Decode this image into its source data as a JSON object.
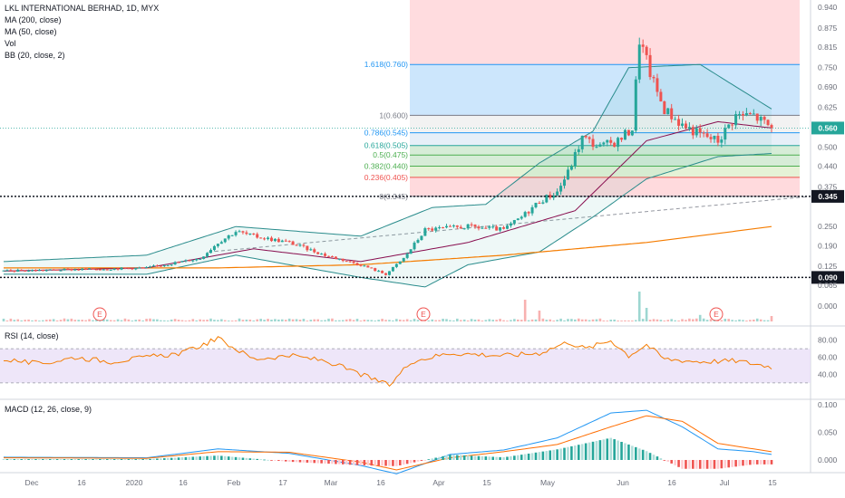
{
  "header": {
    "title": "LKL INTERNATIONAL BERHAD, 1D, MYX",
    "indicators": [
      "MA (200, close)",
      "MA (50, close)",
      "Vol",
      "BB (20, close, 2)"
    ]
  },
  "colors": {
    "up": "#26a69a",
    "down": "#ef5350",
    "ma200": "#f57c00",
    "ma50": "#880e4f",
    "bb": "#2a8c8c",
    "rsi": "#f57c00",
    "rsi_band": "#e7dcf7",
    "macd": "#2196f3",
    "signal": "#ff6d00",
    "price_tag": "#26a69a"
  },
  "price_axis": {
    "ticks": [
      "0.940",
      "0.875",
      "0.815",
      "0.750",
      "0.690",
      "0.625",
      "0.560",
      "0.500",
      "0.440",
      "0.375",
      "0.345",
      "0.250",
      "0.190",
      "0.125",
      "0.090",
      "0.065",
      "0.000"
    ],
    "last_price": "0.560",
    "level_high": "0.345",
    "level_low": "0.090"
  },
  "fib_labels": [
    {
      "text": "1.618(0.760)",
      "color": "#2196f3"
    },
    {
      "text": "1(0.600)",
      "color": "#787b86"
    },
    {
      "text": "0.786(0.545)",
      "color": "#2196f3"
    },
    {
      "text": "0.618(0.505)",
      "color": "#26a69a"
    },
    {
      "text": "0.5(0.475)",
      "color": "#4caf50"
    },
    {
      "text": "0.382(0.440)",
      "color": "#4caf50"
    },
    {
      "text": "0.236(0.405)",
      "color": "#ef5350"
    },
    {
      "text": "0(0.345)",
      "color": "#787b86"
    }
  ],
  "events": [
    "E",
    "E",
    "E"
  ],
  "rsi_panel": {
    "label": "RSI (14, close)",
    "ticks": [
      "80.00",
      "60.00",
      "40.00"
    ]
  },
  "macd_panel": {
    "label": "MACD (12, 26, close, 9)",
    "ticks": [
      "0.100",
      "0.050",
      "0.000"
    ]
  },
  "time_axis": [
    "Dec",
    "16",
    "2020",
    "16",
    "Feb",
    "17",
    "Mar",
    "16",
    "Apr",
    "15",
    "May",
    "Jun",
    "16",
    "Jul",
    "15"
  ],
  "chart_data": {
    "type": "candlestick",
    "title": "LKL INTERNATIONAL BERHAD, 1D, MYX",
    "y_range": [
      0,
      0.94
    ],
    "last_price": 0.56,
    "horizontal_levels": [
      0.345,
      0.09
    ],
    "fibonacci_levels": [
      {
        "ratio": 1.618,
        "price": 0.76
      },
      {
        "ratio": 1,
        "price": 0.6
      },
      {
        "ratio": 0.786,
        "price": 0.545
      },
      {
        "ratio": 0.618,
        "price": 0.505
      },
      {
        "ratio": 0.5,
        "price": 0.475
      },
      {
        "ratio": 0.382,
        "price": 0.44
      },
      {
        "ratio": 0.236,
        "price": 0.405
      },
      {
        "ratio": 0,
        "price": 0.345
      }
    ],
    "close_path": [
      [
        0,
        0.11
      ],
      [
        20,
        0.115
      ],
      [
        40,
        0.12
      ],
      [
        55,
        0.15
      ],
      [
        60,
        0.2
      ],
      [
        65,
        0.235
      ],
      [
        70,
        0.22
      ],
      [
        80,
        0.2
      ],
      [
        90,
        0.16
      ],
      [
        100,
        0.13
      ],
      [
        107,
        0.1
      ],
      [
        112,
        0.15
      ],
      [
        118,
        0.24
      ],
      [
        130,
        0.25
      ],
      [
        140,
        0.24
      ],
      [
        145,
        0.28
      ],
      [
        150,
        0.33
      ],
      [
        155,
        0.36
      ],
      [
        158,
        0.42
      ],
      [
        162,
        0.53
      ],
      [
        167,
        0.5
      ],
      [
        172,
        0.52
      ],
      [
        176,
        0.56
      ],
      [
        178,
        0.84
      ],
      [
        182,
        0.7
      ],
      [
        185,
        0.62
      ],
      [
        190,
        0.57
      ],
      [
        195,
        0.54
      ],
      [
        200,
        0.52
      ],
      [
        205,
        0.6
      ],
      [
        210,
        0.6
      ],
      [
        215,
        0.56
      ]
    ],
    "ma200_path": [
      [
        0,
        0.12
      ],
      [
        60,
        0.12
      ],
      [
        100,
        0.13
      ],
      [
        140,
        0.16
      ],
      [
        180,
        0.2
      ],
      [
        215,
        0.25
      ]
    ],
    "ma50_path": [
      [
        0,
        0.11
      ],
      [
        40,
        0.12
      ],
      [
        70,
        0.18
      ],
      [
        100,
        0.14
      ],
      [
        130,
        0.2
      ],
      [
        160,
        0.3
      ],
      [
        180,
        0.52
      ],
      [
        200,
        0.58
      ],
      [
        215,
        0.56
      ]
    ],
    "bb_upper_path": [
      [
        0,
        0.14
      ],
      [
        40,
        0.16
      ],
      [
        65,
        0.25
      ],
      [
        100,
        0.22
      ],
      [
        120,
        0.31
      ],
      [
        135,
        0.32
      ],
      [
        150,
        0.45
      ],
      [
        165,
        0.55
      ],
      [
        175,
        0.75
      ],
      [
        195,
        0.76
      ],
      [
        215,
        0.62
      ]
    ],
    "bb_lower_path": [
      [
        0,
        0.1
      ],
      [
        40,
        0.1
      ],
      [
        65,
        0.16
      ],
      [
        100,
        0.09
      ],
      [
        118,
        0.06
      ],
      [
        130,
        0.13
      ],
      [
        150,
        0.17
      ],
      [
        165,
        0.28
      ],
      [
        180,
        0.4
      ],
      [
        200,
        0.47
      ],
      [
        215,
        0.48
      ]
    ],
    "volume_spikes": [
      [
        146,
        0.4
      ],
      [
        150,
        0.2
      ],
      [
        178,
        0.55
      ],
      [
        180,
        0.25
      ],
      [
        195,
        0.12
      ],
      [
        215,
        0.1
      ]
    ],
    "rsi_path": [
      [
        0,
        58
      ],
      [
        10,
        52
      ],
      [
        20,
        60
      ],
      [
        30,
        55
      ],
      [
        50,
        65
      ],
      [
        60,
        82
      ],
      [
        70,
        58
      ],
      [
        80,
        62
      ],
      [
        90,
        56
      ],
      [
        100,
        40
      ],
      [
        108,
        27
      ],
      [
        114,
        55
      ],
      [
        125,
        65
      ],
      [
        140,
        62
      ],
      [
        150,
        65
      ],
      [
        158,
        78
      ],
      [
        163,
        70
      ],
      [
        170,
        80
      ],
      [
        175,
        62
      ],
      [
        180,
        75
      ],
      [
        185,
        58
      ],
      [
        195,
        55
      ],
      [
        205,
        56
      ],
      [
        215,
        49
      ]
    ],
    "macd_path": [
      [
        0,
        0.005
      ],
      [
        40,
        0.004
      ],
      [
        60,
        0.02
      ],
      [
        80,
        0.012
      ],
      [
        100,
        -0.01
      ],
      [
        110,
        -0.025
      ],
      [
        125,
        0.01
      ],
      [
        140,
        0.018
      ],
      [
        155,
        0.04
      ],
      [
        170,
        0.085
      ],
      [
        180,
        0.09
      ],
      [
        190,
        0.06
      ],
      [
        200,
        0.02
      ],
      [
        210,
        0.015
      ],
      [
        215,
        0.01
      ]
    ],
    "signal_path": [
      [
        0,
        0.004
      ],
      [
        40,
        0.003
      ],
      [
        60,
        0.015
      ],
      [
        80,
        0.014
      ],
      [
        100,
        -0.004
      ],
      [
        110,
        -0.018
      ],
      [
        125,
        0.004
      ],
      [
        140,
        0.015
      ],
      [
        155,
        0.028
      ],
      [
        170,
        0.06
      ],
      [
        180,
        0.08
      ],
      [
        190,
        0.07
      ],
      [
        200,
        0.03
      ],
      [
        210,
        0.02
      ],
      [
        215,
        0.015
      ]
    ]
  }
}
